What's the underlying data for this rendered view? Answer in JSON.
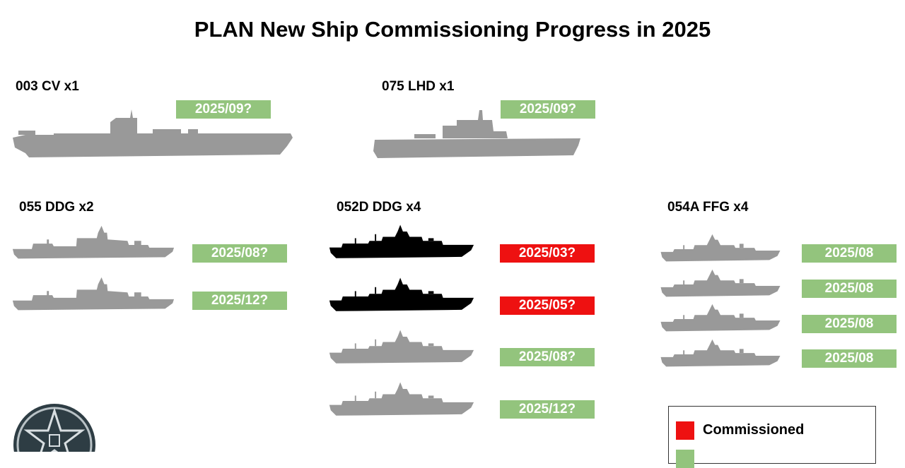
{
  "title": "PLAN New Ship Commissioning Progress in 2025",
  "colors": {
    "commissioned": "#ee1111",
    "pending": "#93c47d",
    "ship_pending": "#999999",
    "ship_commissioned": "#000000"
  },
  "groups": {
    "cv003": {
      "label": "003 CV x1",
      "ships": [
        {
          "date": "2025/09?",
          "status": "pending"
        }
      ]
    },
    "lhd075": {
      "label": "075 LHD x1",
      "ships": [
        {
          "date": "2025/09?",
          "status": "pending"
        }
      ]
    },
    "ddg055": {
      "label": "055 DDG x2",
      "ships": [
        {
          "date": "2025/08?",
          "status": "pending"
        },
        {
          "date": "2025/12?",
          "status": "pending"
        }
      ]
    },
    "ddg052d": {
      "label": "052D DDG x4",
      "ships": [
        {
          "date": "2025/03?",
          "status": "commissioned"
        },
        {
          "date": "2025/05?",
          "status": "commissioned"
        },
        {
          "date": "2025/08?",
          "status": "pending"
        },
        {
          "date": "2025/12?",
          "status": "pending"
        }
      ]
    },
    "ffg054a": {
      "label": "054A FFG x4",
      "ships": [
        {
          "date": "2025/08",
          "status": "pending"
        },
        {
          "date": "2025/08",
          "status": "pending"
        },
        {
          "date": "2025/08",
          "status": "pending"
        },
        {
          "date": "2025/08",
          "status": "pending"
        }
      ]
    }
  },
  "legend": {
    "commissioned_label": "Commissioned",
    "pending_label": ""
  }
}
